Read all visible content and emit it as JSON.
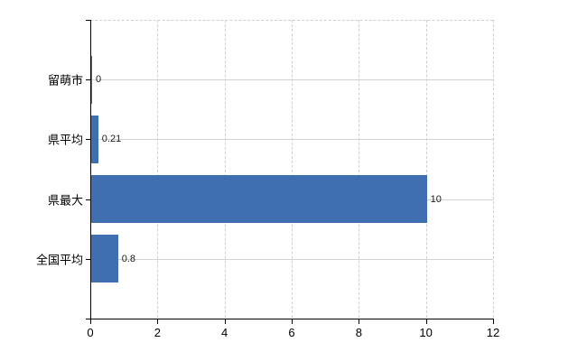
{
  "chart_data": {
    "type": "bar",
    "orientation": "horizontal",
    "title": "",
    "categories": [
      "留萌市",
      "県平均",
      "県最大",
      "全国平均"
    ],
    "values": [
      0,
      0.21,
      10,
      0.8
    ],
    "data_labels": [
      "0",
      "0.21",
      "10",
      "0.8"
    ],
    "x_tick_labels": [
      "0",
      "2",
      "4",
      "6",
      "8",
      "10",
      "12"
    ],
    "x_tick_values": [
      0,
      2,
      4,
      6,
      8,
      10,
      12
    ],
    "xlim": [
      0,
      12
    ],
    "ylabel": "",
    "xlabel": "",
    "grid": true,
    "legend_position": "none",
    "colors": {
      "bar": "#3f6eb1",
      "axis": "#000000",
      "grid_horizontal": "#ccd6cc",
      "grid_vertical": "#cfcfcf",
      "category_text": "#000000",
      "tick_text": "#000000",
      "data_label_text": "#1a1a1a",
      "background": "#ffffff"
    }
  }
}
